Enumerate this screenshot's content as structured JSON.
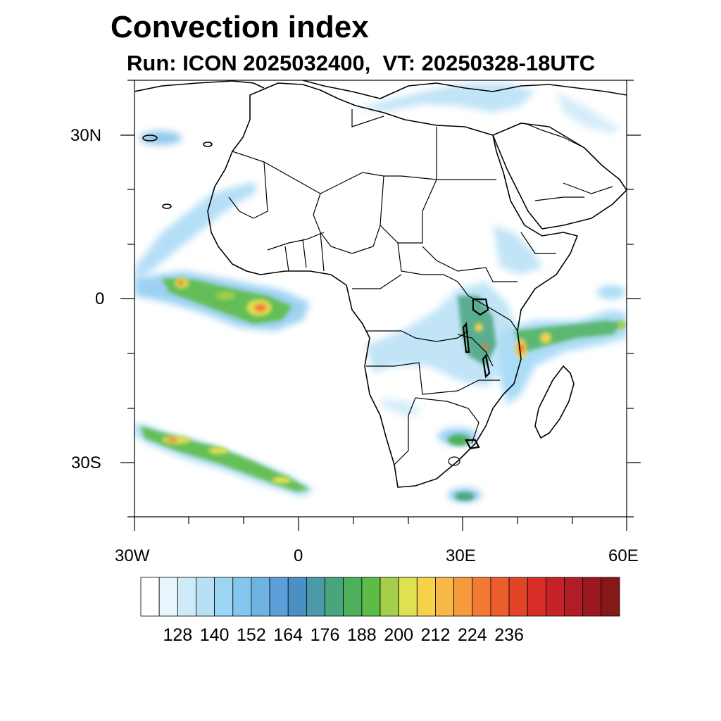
{
  "title": "Convection index",
  "subtitle": "Run: ICON 2025032400,  VT: 20250328-18UTC",
  "map": {
    "lon_range": [
      -30,
      60
    ],
    "lat_range": [
      -40,
      40
    ],
    "lon_labels": [
      "30W",
      "0",
      "30E",
      "60E"
    ],
    "lat_labels": [
      "30N",
      "0",
      "30S"
    ]
  },
  "colorbar": {
    "labels": [
      "128",
      "140",
      "152",
      "164",
      "176",
      "188",
      "200",
      "212",
      "224",
      "236"
    ],
    "colors": [
      "#ffffff",
      "#e8f5fc",
      "#cfeaf9",
      "#b7e0f6",
      "#9dd6f4",
      "#84c6ec",
      "#6fb3e3",
      "#5b9fd8",
      "#4a90c4",
      "#4a9aa8",
      "#48a57e",
      "#4cb05c",
      "#5dbb47",
      "#a5ce4a",
      "#dfe052",
      "#f6d24b",
      "#f8b845",
      "#f7993d",
      "#f27a35",
      "#ec5d2e",
      "#e24428",
      "#d72f28",
      "#c52228",
      "#b21c25",
      "#9c1820",
      "#861818"
    ]
  }
}
